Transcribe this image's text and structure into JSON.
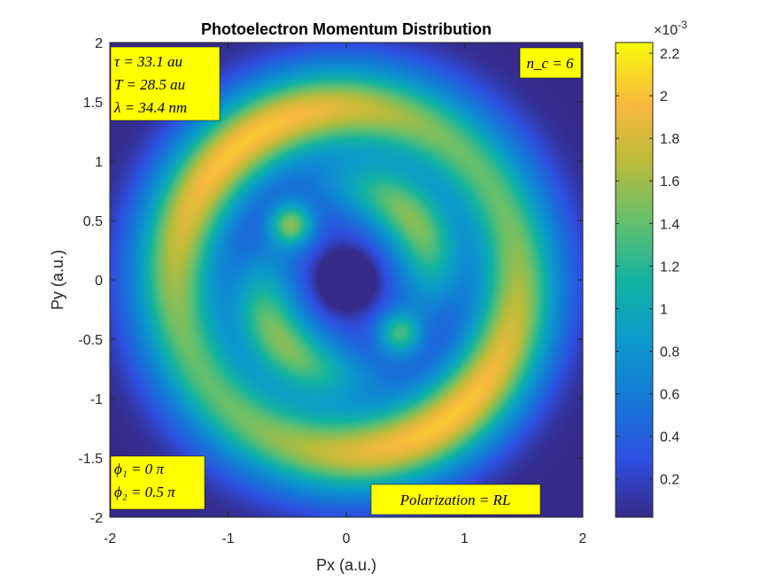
{
  "chart_data": {
    "type": "heatmap",
    "title": "Photoelectron Momentum Distribution",
    "xlabel": "Px (a.u.)",
    "ylabel": "Py (a.u.)",
    "xlim": [
      -2,
      2
    ],
    "ylim": [
      -2,
      2
    ],
    "xticks": [
      "-2",
      "-1",
      "0",
      "1",
      "2"
    ],
    "yticks": [
      "2",
      "1.5",
      "1",
      "0.5",
      "0",
      "-0.5",
      "-1",
      "-1.5",
      "-2"
    ],
    "colormap": "parula",
    "colorbar": {
      "range": [
        2e-05,
        0.00225
      ],
      "exponent_label": "×10",
      "exponent_value": "-3",
      "ticks": [
        "2.2",
        "2",
        "1.8",
        "1.6",
        "1.4",
        "1.2",
        "1",
        "0.8",
        "0.6",
        "0.4",
        "0.2"
      ]
    },
    "annotations": {
      "top_left": [
        "τ = 33.1 au",
        "T = 28.5 au",
        "λ = 34.4 nm"
      ],
      "top_right": "n_c = 6",
      "bottom_left": [
        "ϕ₁ = 0 π",
        "ϕ₂ = 0.5 π"
      ],
      "bottom_right": "Polarization = RL"
    }
  }
}
